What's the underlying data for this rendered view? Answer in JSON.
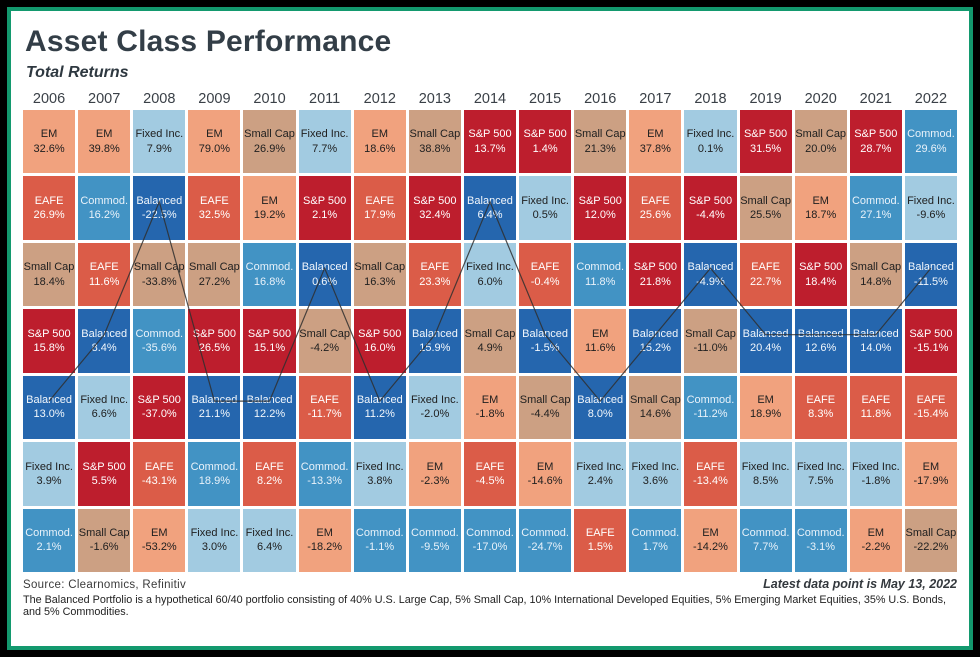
{
  "header": {
    "title": "Asset Class Performance",
    "subtitle": "Total Returns"
  },
  "footer": {
    "source": "Source: Clearnomics, Refinitiv",
    "latest": "Latest data point is May 13, 2022",
    "note": "The Balanced Portfolio is a hypothetical 60/40 portfolio consisting of 40% U.S. Large Cap, 5% Small Cap, 10% International Developed Equities, 5% Emerging Market Equities, 35% U.S. Bonds, and 5% Commodities."
  },
  "colors": {
    "frame_border": "#13996E",
    "outer_border": "#000000",
    "line_overlay": "#2F2F2F"
  },
  "chart_data": {
    "type": "heatmap",
    "title": "Asset Class Performance",
    "subtitle": "Total Returns",
    "legend_note": "Each column ranks asset class total returns for that year, best (top) to worst (bottom)",
    "years": [
      "2006",
      "2007",
      "2008",
      "2009",
      "2010",
      "2011",
      "2012",
      "2013",
      "2014",
      "2015",
      "2016",
      "2017",
      "2018",
      "2019",
      "2020",
      "2021",
      "2022"
    ],
    "asset_styles": {
      "EM": {
        "bg": "#F1A27E",
        "fg": "#202020"
      },
      "EAFE": {
        "bg": "#DB5C48",
        "fg": "#FFFFFF"
      },
      "Small Cap": {
        "bg": "#CCA083",
        "fg": "#202020"
      },
      "S&P 500": {
        "bg": "#BD1E2D",
        "fg": "#FFFFFF"
      },
      "Fixed Inc.": {
        "bg": "#A2CBE1",
        "fg": "#202020"
      },
      "Commod.": {
        "bg": "#4293C4",
        "fg": "#E9F2FA"
      },
      "Balanced": {
        "bg": "#2566AE",
        "fg": "#F2F7FC"
      }
    },
    "overlay": {
      "asset": "Balanced",
      "line_color": "#2F2F2F"
    },
    "columns": [
      {
        "year": "2006",
        "cells": [
          {
            "asset": "EM",
            "value": "32.6%"
          },
          {
            "asset": "EAFE",
            "value": "26.9%"
          },
          {
            "asset": "Small Cap",
            "value": "18.4%"
          },
          {
            "asset": "S&P 500",
            "value": "15.8%"
          },
          {
            "asset": "Balanced",
            "value": "13.0%"
          },
          {
            "asset": "Fixed Inc.",
            "value": "3.9%"
          },
          {
            "asset": "Commod.",
            "value": "2.1%"
          }
        ]
      },
      {
        "year": "2007",
        "cells": [
          {
            "asset": "EM",
            "value": "39.8%"
          },
          {
            "asset": "Commod.",
            "value": "16.2%"
          },
          {
            "asset": "EAFE",
            "value": "11.6%"
          },
          {
            "asset": "Balanced",
            "value": "8.4%"
          },
          {
            "asset": "Fixed Inc.",
            "value": "6.6%"
          },
          {
            "asset": "S&P 500",
            "value": "5.5%"
          },
          {
            "asset": "Small Cap",
            "value": "-1.6%"
          }
        ]
      },
      {
        "year": "2008",
        "cells": [
          {
            "asset": "Fixed Inc.",
            "value": "7.9%"
          },
          {
            "asset": "Balanced",
            "value": "-22.5%"
          },
          {
            "asset": "Small Cap",
            "value": "-33.8%"
          },
          {
            "asset": "Commod.",
            "value": "-35.6%"
          },
          {
            "asset": "S&P 500",
            "value": "-37.0%"
          },
          {
            "asset": "EAFE",
            "value": "-43.1%"
          },
          {
            "asset": "EM",
            "value": "-53.2%"
          }
        ]
      },
      {
        "year": "2009",
        "cells": [
          {
            "asset": "EM",
            "value": "79.0%"
          },
          {
            "asset": "EAFE",
            "value": "32.5%"
          },
          {
            "asset": "Small Cap",
            "value": "27.2%"
          },
          {
            "asset": "S&P 500",
            "value": "26.5%"
          },
          {
            "asset": "Balanced",
            "value": "21.1%"
          },
          {
            "asset": "Commod.",
            "value": "18.9%"
          },
          {
            "asset": "Fixed Inc.",
            "value": "3.0%"
          }
        ]
      },
      {
        "year": "2010",
        "cells": [
          {
            "asset": "Small Cap",
            "value": "26.9%"
          },
          {
            "asset": "EM",
            "value": "19.2%"
          },
          {
            "asset": "Commod.",
            "value": "16.8%"
          },
          {
            "asset": "S&P 500",
            "value": "15.1%"
          },
          {
            "asset": "Balanced",
            "value": "12.2%"
          },
          {
            "asset": "EAFE",
            "value": "8.2%"
          },
          {
            "asset": "Fixed Inc.",
            "value": "6.4%"
          }
        ]
      },
      {
        "year": "2011",
        "cells": [
          {
            "asset": "Fixed Inc.",
            "value": "7.7%"
          },
          {
            "asset": "S&P 500",
            "value": "2.1%"
          },
          {
            "asset": "Balanced",
            "value": "0.6%"
          },
          {
            "asset": "Small Cap",
            "value": "-4.2%"
          },
          {
            "asset": "EAFE",
            "value": "-11.7%"
          },
          {
            "asset": "Commod.",
            "value": "-13.3%"
          },
          {
            "asset": "EM",
            "value": "-18.2%"
          }
        ]
      },
      {
        "year": "2012",
        "cells": [
          {
            "asset": "EM",
            "value": "18.6%"
          },
          {
            "asset": "EAFE",
            "value": "17.9%"
          },
          {
            "asset": "Small Cap",
            "value": "16.3%"
          },
          {
            "asset": "S&P 500",
            "value": "16.0%"
          },
          {
            "asset": "Balanced",
            "value": "11.2%"
          },
          {
            "asset": "Fixed Inc.",
            "value": "3.8%"
          },
          {
            "asset": "Commod.",
            "value": "-1.1%"
          }
        ]
      },
      {
        "year": "2013",
        "cells": [
          {
            "asset": "Small Cap",
            "value": "38.8%"
          },
          {
            "asset": "S&P 500",
            "value": "32.4%"
          },
          {
            "asset": "EAFE",
            "value": "23.3%"
          },
          {
            "asset": "Balanced",
            "value": "15.9%"
          },
          {
            "asset": "Fixed Inc.",
            "value": "-2.0%"
          },
          {
            "asset": "EM",
            "value": "-2.3%"
          },
          {
            "asset": "Commod.",
            "value": "-9.5%"
          }
        ]
      },
      {
        "year": "2014",
        "cells": [
          {
            "asset": "S&P 500",
            "value": "13.7%"
          },
          {
            "asset": "Balanced",
            "value": "6.4%"
          },
          {
            "asset": "Fixed Inc.",
            "value": "6.0%"
          },
          {
            "asset": "Small Cap",
            "value": "4.9%"
          },
          {
            "asset": "EM",
            "value": "-1.8%"
          },
          {
            "asset": "EAFE",
            "value": "-4.5%"
          },
          {
            "asset": "Commod.",
            "value": "-17.0%"
          }
        ]
      },
      {
        "year": "2015",
        "cells": [
          {
            "asset": "S&P 500",
            "value": "1.4%"
          },
          {
            "asset": "Fixed Inc.",
            "value": "0.5%"
          },
          {
            "asset": "EAFE",
            "value": "-0.4%"
          },
          {
            "asset": "Balanced",
            "value": "-1.5%"
          },
          {
            "asset": "Small Cap",
            "value": "-4.4%"
          },
          {
            "asset": "EM",
            "value": "-14.6%"
          },
          {
            "asset": "Commod.",
            "value": "-24.7%"
          }
        ]
      },
      {
        "year": "2016",
        "cells": [
          {
            "asset": "Small Cap",
            "value": "21.3%"
          },
          {
            "asset": "S&P 500",
            "value": "12.0%"
          },
          {
            "asset": "Commod.",
            "value": "11.8%"
          },
          {
            "asset": "EM",
            "value": "11.6%"
          },
          {
            "asset": "Balanced",
            "value": "8.0%"
          },
          {
            "asset": "Fixed Inc.",
            "value": "2.4%"
          },
          {
            "asset": "EAFE",
            "value": "1.5%"
          }
        ]
      },
      {
        "year": "2017",
        "cells": [
          {
            "asset": "EM",
            "value": "37.8%"
          },
          {
            "asset": "EAFE",
            "value": "25.6%"
          },
          {
            "asset": "S&P 500",
            "value": "21.8%"
          },
          {
            "asset": "Balanced",
            "value": "15.2%"
          },
          {
            "asset": "Small Cap",
            "value": "14.6%"
          },
          {
            "asset": "Fixed Inc.",
            "value": "3.6%"
          },
          {
            "asset": "Commod.",
            "value": "1.7%"
          }
        ]
      },
      {
        "year": "2018",
        "cells": [
          {
            "asset": "Fixed Inc.",
            "value": "0.1%"
          },
          {
            "asset": "S&P 500",
            "value": "-4.4%"
          },
          {
            "asset": "Balanced",
            "value": "-4.9%"
          },
          {
            "asset": "Small Cap",
            "value": "-11.0%"
          },
          {
            "asset": "Commod.",
            "value": "-11.2%"
          },
          {
            "asset": "EAFE",
            "value": "-13.4%"
          },
          {
            "asset": "EM",
            "value": "-14.2%"
          }
        ]
      },
      {
        "year": "2019",
        "cells": [
          {
            "asset": "S&P 500",
            "value": "31.5%"
          },
          {
            "asset": "Small Cap",
            "value": "25.5%"
          },
          {
            "asset": "EAFE",
            "value": "22.7%"
          },
          {
            "asset": "Balanced",
            "value": "20.4%"
          },
          {
            "asset": "EM",
            "value": "18.9%"
          },
          {
            "asset": "Fixed Inc.",
            "value": "8.5%"
          },
          {
            "asset": "Commod.",
            "value": "7.7%"
          }
        ]
      },
      {
        "year": "2020",
        "cells": [
          {
            "asset": "Small Cap",
            "value": "20.0%"
          },
          {
            "asset": "EM",
            "value": "18.7%"
          },
          {
            "asset": "S&P 500",
            "value": "18.4%"
          },
          {
            "asset": "Balanced",
            "value": "12.6%"
          },
          {
            "asset": "EAFE",
            "value": "8.3%"
          },
          {
            "asset": "Fixed Inc.",
            "value": "7.5%"
          },
          {
            "asset": "Commod.",
            "value": "-3.1%"
          }
        ]
      },
      {
        "year": "2021",
        "cells": [
          {
            "asset": "S&P 500",
            "value": "28.7%"
          },
          {
            "asset": "Commod.",
            "value": "27.1%"
          },
          {
            "asset": "Small Cap",
            "value": "14.8%"
          },
          {
            "asset": "Balanced",
            "value": "14.0%"
          },
          {
            "asset": "EAFE",
            "value": "11.8%"
          },
          {
            "asset": "Fixed Inc.",
            "value": "-1.8%"
          },
          {
            "asset": "EM",
            "value": "-2.2%"
          }
        ]
      },
      {
        "year": "2022",
        "cells": [
          {
            "asset": "Commod.",
            "value": "29.6%"
          },
          {
            "asset": "Fixed Inc.",
            "value": "-9.6%"
          },
          {
            "asset": "Balanced",
            "value": "-11.5%"
          },
          {
            "asset": "S&P 500",
            "value": "-15.1%"
          },
          {
            "asset": "EAFE",
            "value": "-15.4%"
          },
          {
            "asset": "EM",
            "value": "-17.9%"
          },
          {
            "asset": "Small Cap",
            "value": "-22.2%"
          }
        ]
      }
    ]
  }
}
